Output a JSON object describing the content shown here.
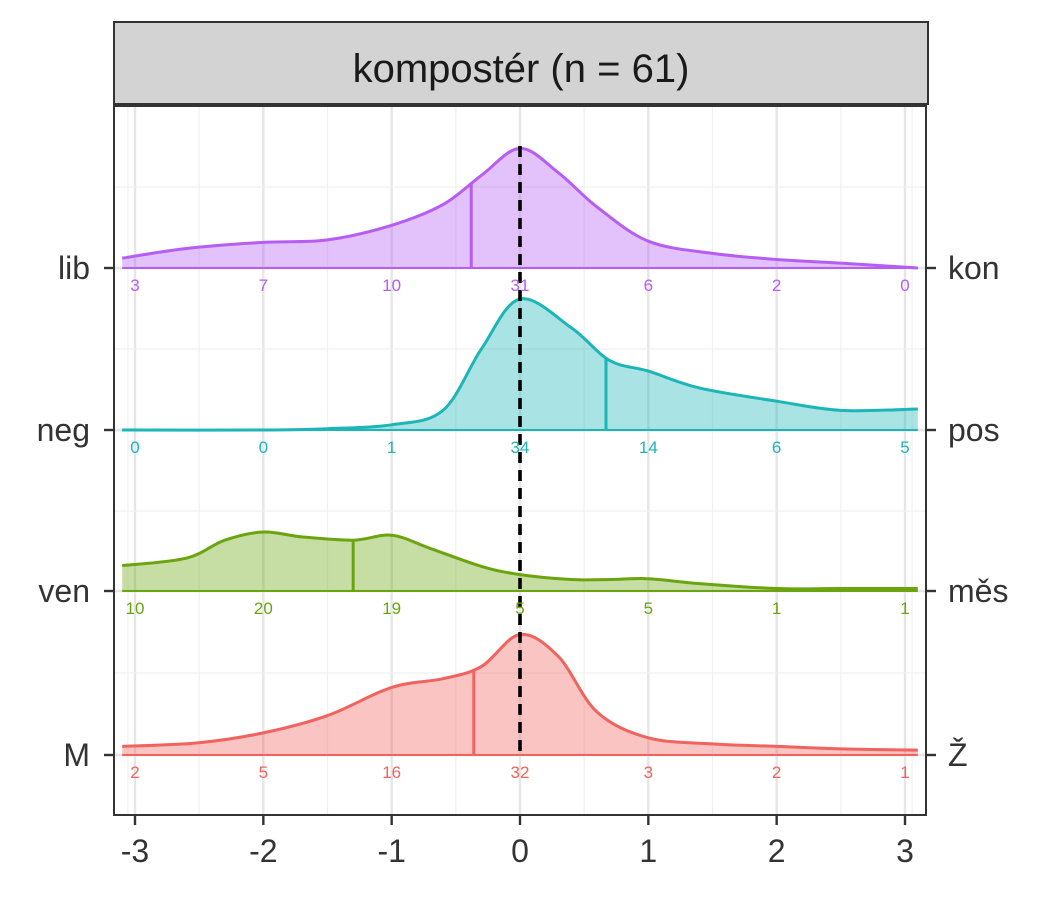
{
  "chart_data": {
    "type": "ridgeline",
    "title": "kompostér (n = 61)",
    "xlim": [
      -3.1,
      3.1
    ],
    "x_ticks": [
      -3,
      -2,
      -1,
      0,
      1,
      2,
      3
    ],
    "x_tick_labels": [
      "-3",
      "-2",
      "-1",
      "0",
      "1",
      "2",
      "3"
    ],
    "reference_line_x": 0,
    "grid": true,
    "count_positions": [
      -3,
      -2,
      -1,
      0,
      1,
      2,
      3
    ],
    "series": [
      {
        "left_label": "lib",
        "right_label": "kon",
        "color": "#B65DF2",
        "mean": -0.38,
        "counts": [
          "3",
          "7",
          "10",
          "31",
          "6",
          "2",
          "0"
        ],
        "density": [
          [
            -3.1,
            0.08
          ],
          [
            -2.6,
            0.16
          ],
          [
            -2.0,
            0.21
          ],
          [
            -1.5,
            0.23
          ],
          [
            -1.0,
            0.35
          ],
          [
            -0.6,
            0.52
          ],
          [
            -0.3,
            0.76
          ],
          [
            0.0,
            0.98
          ],
          [
            0.3,
            0.78
          ],
          [
            0.6,
            0.5
          ],
          [
            1.0,
            0.22
          ],
          [
            1.5,
            0.12
          ],
          [
            2.0,
            0.07
          ],
          [
            2.5,
            0.04
          ],
          [
            3.1,
            0.0
          ]
        ]
      },
      {
        "left_label": "neg",
        "right_label": "pos",
        "color": "#1CB5B8",
        "mean": 0.67,
        "counts": [
          "0",
          "0",
          "1",
          "34",
          "14",
          "6",
          "5"
        ],
        "density": [
          [
            -3.1,
            0.0
          ],
          [
            -2.0,
            0.0
          ],
          [
            -1.5,
            0.01
          ],
          [
            -1.0,
            0.04
          ],
          [
            -0.6,
            0.15
          ],
          [
            -0.3,
            0.62
          ],
          [
            0.0,
            1.0
          ],
          [
            0.4,
            0.78
          ],
          [
            0.7,
            0.53
          ],
          [
            1.0,
            0.45
          ],
          [
            1.4,
            0.32
          ],
          [
            2.0,
            0.22
          ],
          [
            2.5,
            0.15
          ],
          [
            3.1,
            0.16
          ]
        ]
      },
      {
        "left_label": "ven",
        "right_label": "měs",
        "color": "#6AA50F",
        "mean": -1.3,
        "counts": [
          "10",
          "20",
          "19",
          "5",
          "5",
          "1",
          "1"
        ],
        "density": [
          [
            -3.1,
            0.31
          ],
          [
            -2.6,
            0.4
          ],
          [
            -2.3,
            0.62
          ],
          [
            -2.0,
            0.72
          ],
          [
            -1.7,
            0.66
          ],
          [
            -1.3,
            0.62
          ],
          [
            -1.0,
            0.68
          ],
          [
            -0.7,
            0.52
          ],
          [
            -0.3,
            0.3
          ],
          [
            0.0,
            0.2
          ],
          [
            0.4,
            0.14
          ],
          [
            0.7,
            0.14
          ],
          [
            1.0,
            0.15
          ],
          [
            1.4,
            0.09
          ],
          [
            2.0,
            0.03
          ],
          [
            2.5,
            0.03
          ],
          [
            3.1,
            0.03
          ]
        ]
      },
      {
        "left_label": "M",
        "right_label": "Ž",
        "color": "#F0635E",
        "mean": -0.36,
        "counts": [
          "2",
          "5",
          "16",
          "32",
          "3",
          "2",
          "1"
        ],
        "density": [
          [
            -3.1,
            0.07
          ],
          [
            -2.5,
            0.1
          ],
          [
            -2.0,
            0.18
          ],
          [
            -1.5,
            0.32
          ],
          [
            -1.0,
            0.55
          ],
          [
            -0.6,
            0.62
          ],
          [
            -0.3,
            0.72
          ],
          [
            0.0,
            0.98
          ],
          [
            0.3,
            0.8
          ],
          [
            0.6,
            0.35
          ],
          [
            1.0,
            0.14
          ],
          [
            1.5,
            0.09
          ],
          [
            2.0,
            0.07
          ],
          [
            2.5,
            0.05
          ],
          [
            3.1,
            0.04
          ]
        ]
      }
    ]
  }
}
